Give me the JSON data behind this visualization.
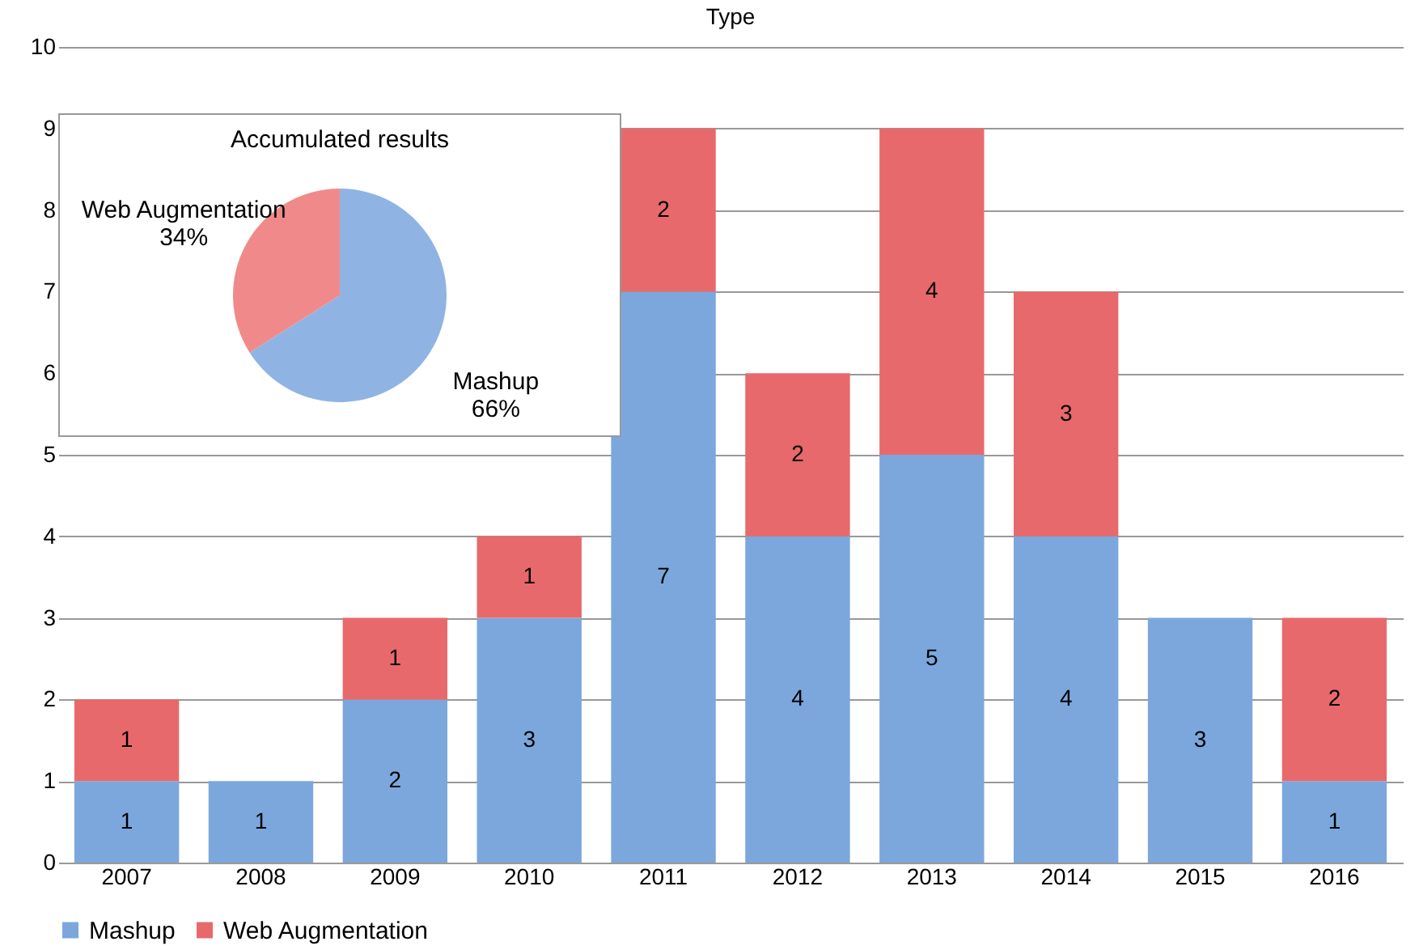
{
  "chart_data": [
    {
      "type": "bar",
      "title": "Type",
      "categories": [
        "2007",
        "2008",
        "2009",
        "2010",
        "2011",
        "2012",
        "2013",
        "2014",
        "2015",
        "2016"
      ],
      "stacked": true,
      "data_labels": true,
      "grid": "y",
      "legend": "bottom",
      "ylim": [
        0,
        10
      ],
      "yticks": [
        0,
        1,
        2,
        3,
        4,
        5,
        6,
        7,
        8,
        9,
        10
      ],
      "series": [
        {
          "name": "Mashup",
          "color": "#7ba7dc",
          "values": [
            1,
            1,
            2,
            3,
            7,
            4,
            5,
            4,
            3,
            1
          ]
        },
        {
          "name": "Web Augmentation",
          "color": "#e8696b",
          "values": [
            1,
            null,
            1,
            1,
            2,
            2,
            4,
            3,
            null,
            2
          ]
        }
      ]
    },
    {
      "type": "pie",
      "title": "Accumulated results",
      "categories": [
        "Mashup",
        "Web Augmentation"
      ],
      "values": [
        66,
        34
      ],
      "colors": [
        "#8fb4e3",
        "#f08a8a"
      ],
      "value_labels": [
        "66%",
        "34%"
      ]
    }
  ]
}
